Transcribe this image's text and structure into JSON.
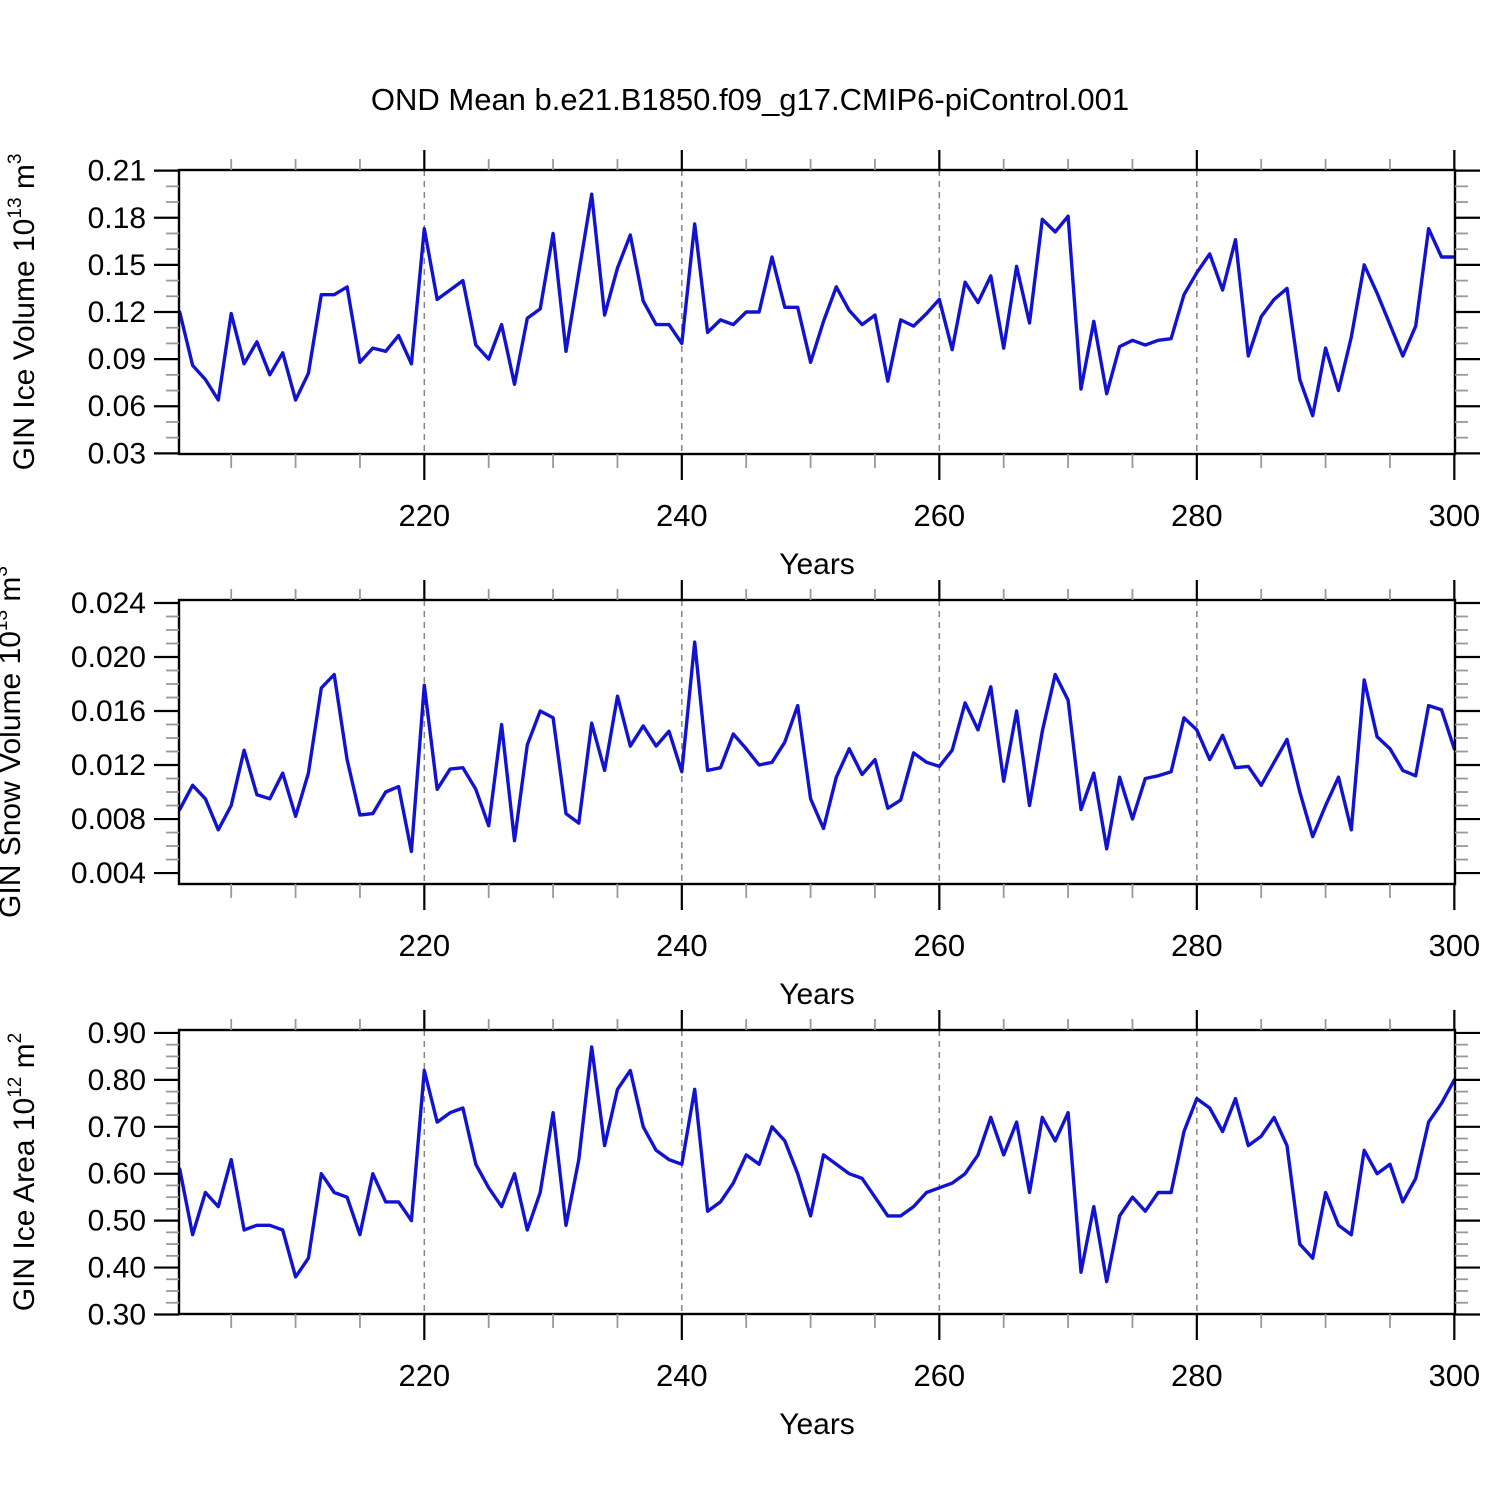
{
  "title": "OND Mean b.e21.B1850.f09_g17.CMIP6-piControl.001",
  "x_axis": {
    "label": "Years",
    "range": [
      201,
      300
    ],
    "ticks": [
      220,
      240,
      260,
      280,
      300
    ],
    "tick_labels": [
      "220",
      "240",
      "260",
      "280",
      "300"
    ],
    "minor_tick_step": 5,
    "dashed_gridlines": [
      220,
      240,
      260,
      280
    ]
  },
  "style": {
    "line_color": "#1113d1",
    "axis_color": "#000000",
    "minor_tick_color": "#999999",
    "grid_color": "#858585",
    "background": "#ffffff",
    "text_color": "#000000"
  },
  "chart_data": [
    {
      "type": "line",
      "name": "GIN Ice Volume",
      "ylabel": "GIN Ice Volume 10^13 m^3",
      "ylabel_parts": [
        {
          "t": "GIN Ice Volume 10"
        },
        {
          "sup": "13"
        },
        {
          "t": " m"
        },
        {
          "sup": "3"
        }
      ],
      "ylim": [
        0.0296,
        0.2104
      ],
      "ytick_labels": [
        "0.03",
        "0.06",
        "0.09",
        "0.12",
        "0.15",
        "0.18",
        "0.21"
      ],
      "y_minor_step": 0.01,
      "x_start": 201,
      "x_end": 300,
      "values": [
        0.12,
        0.086,
        0.077,
        0.064,
        0.119,
        0.087,
        0.101,
        0.08,
        0.094,
        0.064,
        0.081,
        0.131,
        0.131,
        0.136,
        0.088,
        0.097,
        0.095,
        0.105,
        0.087,
        0.173,
        0.128,
        0.134,
        0.14,
        0.099,
        0.09,
        0.112,
        0.074,
        0.116,
        0.122,
        0.17,
        0.095,
        0.145,
        0.195,
        0.118,
        0.148,
        0.169,
        0.127,
        0.112,
        0.112,
        0.1,
        0.176,
        0.107,
        0.115,
        0.112,
        0.12,
        0.12,
        0.155,
        0.123,
        0.123,
        0.088,
        0.114,
        0.136,
        0.121,
        0.112,
        0.118,
        0.076,
        0.115,
        0.111,
        0.119,
        0.128,
        0.096,
        0.139,
        0.126,
        0.143,
        0.097,
        0.149,
        0.113,
        0.179,
        0.171,
        0.181,
        0.071,
        0.114,
        0.068,
        0.098,
        0.102,
        0.099,
        0.102,
        0.103,
        0.131,
        0.145,
        0.157,
        0.134,
        0.166,
        0.092,
        0.117,
        0.128,
        0.135,
        0.077,
        0.054,
        0.097,
        0.07,
        0.104,
        0.15,
        0.132,
        0.112,
        0.092,
        0.111,
        0.173,
        0.155,
        0.155
      ]
    },
    {
      "type": "line",
      "name": "GIN Snow Volume",
      "ylabel": "GIN Snow Volume 10^13 m^3",
      "ylabel_parts": [
        {
          "t": "GIN Snow Volume 10"
        },
        {
          "sup": "13"
        },
        {
          "t": " m"
        },
        {
          "sup": "3"
        }
      ],
      "ylim": [
        0.00319,
        0.02422
      ],
      "ytick_labels": [
        "0.004",
        "0.008",
        "0.012",
        "0.016",
        "0.020",
        "0.024"
      ],
      "y_minor_step": 0.001,
      "x_start": 201,
      "x_end": 300,
      "values": [
        0.0087,
        0.0105,
        0.0095,
        0.0072,
        0.009,
        0.0131,
        0.0098,
        0.0095,
        0.0114,
        0.0082,
        0.0114,
        0.0177,
        0.0187,
        0.0124,
        0.0083,
        0.0084,
        0.01,
        0.0104,
        0.0056,
        0.0179,
        0.0102,
        0.0117,
        0.0118,
        0.0102,
        0.0075,
        0.015,
        0.0064,
        0.0135,
        0.016,
        0.0155,
        0.0084,
        0.0077,
        0.0151,
        0.0116,
        0.0171,
        0.0134,
        0.0149,
        0.0134,
        0.0145,
        0.0115,
        0.0211,
        0.0116,
        0.0118,
        0.0143,
        0.0132,
        0.012,
        0.0122,
        0.0137,
        0.0164,
        0.0095,
        0.0073,
        0.0111,
        0.0132,
        0.0113,
        0.0124,
        0.0088,
        0.0094,
        0.0129,
        0.0122,
        0.0119,
        0.0131,
        0.0166,
        0.0146,
        0.0178,
        0.0108,
        0.016,
        0.009,
        0.0145,
        0.0187,
        0.0168,
        0.0087,
        0.0114,
        0.0058,
        0.0111,
        0.008,
        0.011,
        0.0112,
        0.0115,
        0.0155,
        0.0146,
        0.0124,
        0.0142,
        0.0118,
        0.0119,
        0.0105,
        0.0122,
        0.0139,
        0.01,
        0.0067,
        0.009,
        0.0111,
        0.0072,
        0.0183,
        0.0141,
        0.0132,
        0.0116,
        0.0112,
        0.0164,
        0.0161,
        0.0132
      ]
    },
    {
      "type": "line",
      "name": "GIN Ice Area",
      "ylabel": "GIN Ice Area 10^12 m^2",
      "ylabel_parts": [
        {
          "t": "GIN Ice Area 10"
        },
        {
          "sup": "12"
        },
        {
          "t": " m"
        },
        {
          "sup": "2"
        }
      ],
      "ylim": [
        0.301,
        0.9063
      ],
      "ytick_labels": [
        "0.30",
        "0.40",
        "0.50",
        "0.60",
        "0.70",
        "0.80",
        "0.90"
      ],
      "y_minor_step": 0.025,
      "x_start": 201,
      "x_end": 300,
      "values": [
        0.61,
        0.47,
        0.56,
        0.53,
        0.63,
        0.48,
        0.49,
        0.49,
        0.48,
        0.38,
        0.42,
        0.6,
        0.56,
        0.55,
        0.47,
        0.6,
        0.54,
        0.54,
        0.5,
        0.82,
        0.71,
        0.73,
        0.74,
        0.62,
        0.57,
        0.53,
        0.6,
        0.48,
        0.56,
        0.73,
        0.49,
        0.63,
        0.87,
        0.66,
        0.78,
        0.82,
        0.7,
        0.65,
        0.63,
        0.62,
        0.78,
        0.52,
        0.54,
        0.58,
        0.64,
        0.62,
        0.7,
        0.67,
        0.6,
        0.51,
        0.64,
        0.62,
        0.6,
        0.59,
        0.55,
        0.51,
        0.51,
        0.53,
        0.56,
        0.57,
        0.58,
        0.6,
        0.64,
        0.72,
        0.64,
        0.71,
        0.56,
        0.72,
        0.67,
        0.73,
        0.39,
        0.53,
        0.37,
        0.51,
        0.55,
        0.52,
        0.56,
        0.56,
        0.69,
        0.76,
        0.74,
        0.69,
        0.76,
        0.66,
        0.68,
        0.72,
        0.66,
        0.45,
        0.42,
        0.56,
        0.49,
        0.47,
        0.65,
        0.6,
        0.62,
        0.54,
        0.59,
        0.71,
        0.75,
        0.8
      ]
    }
  ]
}
